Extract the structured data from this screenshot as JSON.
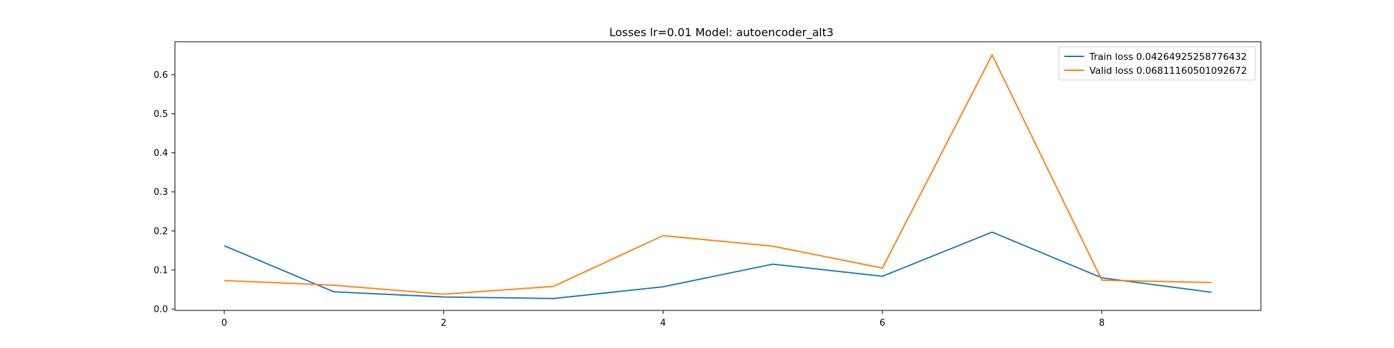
{
  "chart_data": {
    "type": "line",
    "title": "Losses lr=0.01 Model: autoencoder_alt3",
    "xlabel": "",
    "ylabel": "",
    "xlim": [
      -0.45,
      9.45
    ],
    "ylim": [
      -0.0035,
      0.6845
    ],
    "xticks": [
      0,
      2,
      4,
      6,
      8
    ],
    "xtick_labels": [
      "0",
      "2",
      "4",
      "6",
      "8"
    ],
    "yticks": [
      0.0,
      0.1,
      0.2,
      0.3,
      0.4,
      0.5,
      0.6
    ],
    "ytick_labels": [
      "0.0",
      "0.1",
      "0.2",
      "0.3",
      "0.4",
      "0.5",
      "0.6"
    ],
    "grid": false,
    "legend_position": "top-right",
    "x": [
      0,
      1,
      2,
      3,
      4,
      5,
      6,
      7,
      8,
      9
    ],
    "series": [
      {
        "name": "Train loss 0.04264925258776432",
        "color": "#1f77b4",
        "values": [
          0.162,
          0.044,
          0.031,
          0.027,
          0.057,
          0.115,
          0.084,
          0.197,
          0.08,
          0.043
        ]
      },
      {
        "name": "Valid loss 0.06811160501092672",
        "color": "#ff7f0e",
        "values": [
          0.073,
          0.061,
          0.038,
          0.058,
          0.188,
          0.161,
          0.105,
          0.651,
          0.074,
          0.068
        ]
      }
    ]
  }
}
